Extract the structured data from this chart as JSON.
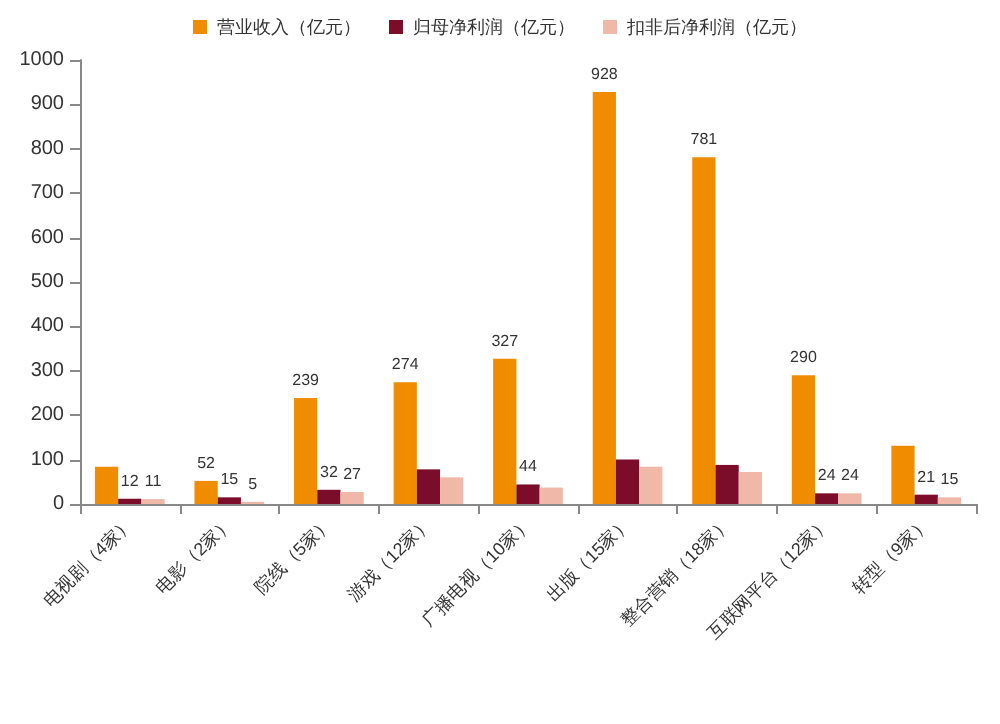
{
  "chart_data": {
    "type": "bar",
    "categories": [
      "电视剧（4家）",
      "电影（2家）",
      "院线（5家）",
      "游戏（12家）",
      "广播电视（10家）",
      "出版（15家）",
      "整合营销（18家）",
      "互联网平台（12家）",
      "转型（9家）"
    ],
    "series": [
      {
        "name": "营业收入（亿元）",
        "color": "#f08c00",
        "values": [
          84,
          52,
          239,
          274,
          327,
          928,
          781,
          290,
          131
        ],
        "value_labels": [
          null,
          "52",
          "239",
          "274",
          "327",
          "928",
          "781",
          "290",
          null
        ]
      },
      {
        "name": "归母净利润（亿元）",
        "color": "#7b0c2a",
        "values": [
          12,
          15,
          32,
          78,
          44,
          100,
          88,
          24,
          21
        ],
        "value_labels": [
          "12",
          "15",
          "32",
          null,
          "44",
          null,
          null,
          "24",
          "21"
        ]
      },
      {
        "name": "扣非后净利润（亿元）",
        "color": "#f0b8a8",
        "values": [
          11,
          5,
          27,
          60,
          37,
          84,
          72,
          24,
          15
        ],
        "value_labels": [
          "11",
          "5",
          "27",
          null,
          null,
          null,
          null,
          "24",
          "15"
        ]
      }
    ],
    "ylim": [
      0,
      1000
    ],
    "yticks": [
      0,
      100,
      200,
      300,
      400,
      500,
      600,
      700,
      800,
      900,
      1000
    ],
    "grid": false,
    "legend": "top"
  }
}
